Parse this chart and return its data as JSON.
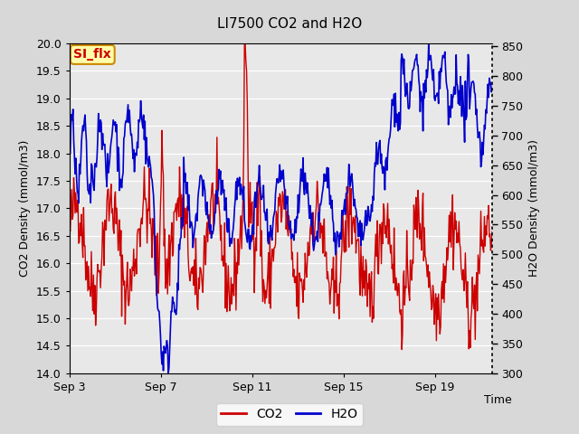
{
  "title": "LI7500 CO2 and H2O",
  "xlabel": "Time",
  "ylabel_left": "CO2 Density (mmol/m3)",
  "ylabel_right": "H2O Density (mmol/m3)",
  "ylim_left": [
    14.0,
    20.0
  ],
  "ylim_right": [
    300,
    855
  ],
  "yticks_left": [
    14.0,
    14.5,
    15.0,
    15.5,
    16.0,
    16.5,
    17.0,
    17.5,
    18.0,
    18.5,
    19.0,
    19.5,
    20.0
  ],
  "yticks_right": [
    300,
    350,
    400,
    450,
    500,
    550,
    600,
    650,
    700,
    750,
    800,
    850
  ],
  "xtick_labels": [
    "Sep 3",
    "Sep 7",
    "Sep 11",
    "Sep 15",
    "Sep 19"
  ],
  "xtick_positions": [
    0,
    4,
    8,
    12,
    16
  ],
  "xlim": [
    0,
    18.5
  ],
  "co2_color": "#cc0000",
  "h2o_color": "#0000cc",
  "fig_bg_color": "#d8d8d8",
  "plot_bg_color": "#e8e8e8",
  "grid_color": "#ffffff",
  "annotation_text": "SI_flx",
  "annotation_bg": "#ffffaa",
  "annotation_border": "#cc8800",
  "annotation_text_color": "#cc0000",
  "legend_co2_label": "CO2",
  "legend_h2o_label": "H2O",
  "seed": 42
}
